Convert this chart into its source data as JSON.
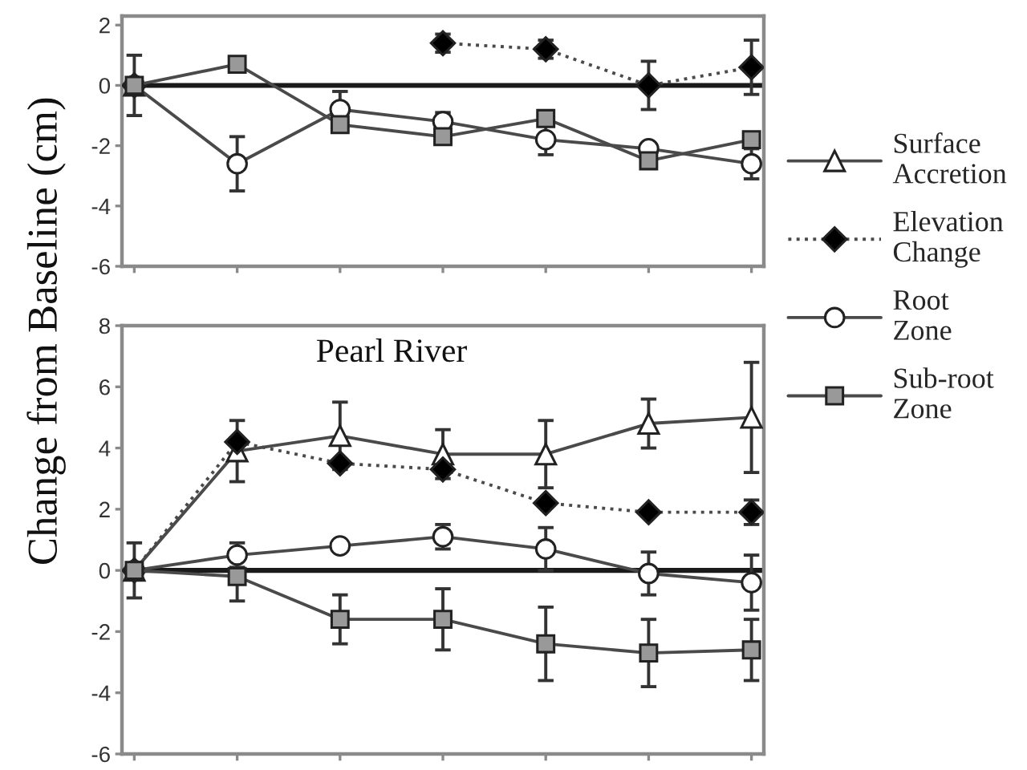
{
  "chart_data": [
    {
      "type": "line",
      "ylabel": "Change from Baseline (cm)",
      "categories": [
        null,
        null,
        null,
        null,
        null,
        null,
        null
      ],
      "ylim": [
        -6,
        2.3
      ],
      "yticks": [
        -6,
        -4,
        -2,
        0,
        2
      ],
      "tick_labels": "y",
      "legend": "right",
      "ref_lines": [
        {
          "axis": "y",
          "value": 0,
          "color": "#1a1a1a"
        }
      ],
      "series": [
        {
          "name": "Surface Accretion",
          "color": "#ffffff",
          "marker": "triangle",
          "line_style": "solid",
          "values": [
            0,
            null,
            null,
            null,
            null,
            null,
            null
          ],
          "errors": [
            1.0,
            null,
            null,
            null,
            null,
            null,
            null
          ]
        },
        {
          "name": "Elevation Change",
          "color": "#000000",
          "marker": "diamond",
          "line_style": "dotted",
          "values": [
            0,
            null,
            null,
            1.4,
            1.2,
            0.0,
            0.6
          ],
          "errors": [
            null,
            null,
            null,
            0.3,
            0.3,
            0.8,
            0.9
          ]
        },
        {
          "name": "Root Zone",
          "color": "#ffffff",
          "marker": "circle",
          "line_style": "solid",
          "values": [
            0,
            -2.6,
            -0.8,
            -1.2,
            -1.8,
            -2.1,
            -2.6
          ],
          "errors": [
            null,
            0.9,
            0.6,
            0.3,
            0.5,
            null,
            0.5
          ]
        },
        {
          "name": "Sub-root Zone",
          "color": "#999999",
          "marker": "square",
          "line_style": "solid",
          "values": [
            0,
            0.7,
            -1.3,
            -1.7,
            -1.1,
            -2.5,
            -1.8
          ]
        }
      ]
    },
    {
      "type": "line",
      "title": "Pearl River",
      "categories": [
        null,
        null,
        null,
        null,
        null,
        null,
        null
      ],
      "ylim": [
        -6,
        8
      ],
      "yticks": [
        -6,
        -4,
        -2,
        0,
        2,
        4,
        6,
        8
      ],
      "tick_labels": "y",
      "ref_lines": [
        {
          "axis": "y",
          "value": 0,
          "color": "#1a1a1a"
        }
      ],
      "series": [
        {
          "color": "#ffffff",
          "marker": "triangle",
          "line_style": "solid",
          "values": [
            0,
            3.9,
            4.4,
            3.8,
            3.8,
            4.8,
            5.0
          ],
          "errors": [
            0.9,
            1.0,
            1.1,
            0.8,
            1.1,
            0.8,
            1.8
          ]
        },
        {
          "color": "#000000",
          "marker": "diamond",
          "line_style": "dotted",
          "values": [
            0,
            4.2,
            3.5,
            3.3,
            2.2,
            1.9,
            1.9
          ],
          "errors": [
            null,
            null,
            null,
            null,
            null,
            null,
            0.4
          ]
        },
        {
          "color": "#ffffff",
          "marker": "circle",
          "line_style": "solid",
          "values": [
            0,
            0.5,
            0.8,
            1.1,
            0.7,
            -0.1,
            -0.4
          ],
          "errors": [
            null,
            0.4,
            null,
            0.4,
            0.7,
            0.7,
            0.9
          ]
        },
        {
          "color": "#999999",
          "marker": "square",
          "line_style": "solid",
          "values": [
            0,
            -0.2,
            -1.6,
            -1.6,
            -2.4,
            -2.7,
            -2.6
          ],
          "errors": [
            null,
            0.8,
            0.8,
            1.0,
            1.2,
            1.1,
            1.0
          ]
        }
      ]
    }
  ]
}
